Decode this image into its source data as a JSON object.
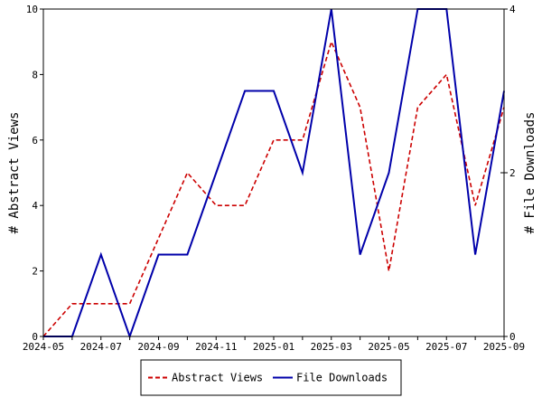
{
  "chart_data": {
    "type": "line",
    "x": [
      "2024-05",
      "2024-06",
      "2024-07",
      "2024-08",
      "2024-09",
      "2024-10",
      "2024-11",
      "2024-12",
      "2025-01",
      "2025-02",
      "2025-03",
      "2025-04",
      "2025-05",
      "2025-06",
      "2025-07",
      "2025-08",
      "2025-09"
    ],
    "x_tick_labels": [
      "2024-05",
      "2024-07",
      "2024-09",
      "2024-11",
      "2025-01",
      "2025-03",
      "2025-05",
      "2025-07",
      "2025-09"
    ],
    "series": [
      {
        "name": "Abstract Views",
        "axis": "left",
        "color": "#cc0000",
        "style": "dashed",
        "values": [
          0,
          1,
          1,
          1,
          3,
          5,
          4,
          4,
          6,
          6,
          9,
          7,
          2,
          7,
          8,
          4,
          7
        ]
      },
      {
        "name": "File Downloads",
        "axis": "right",
        "color": "#0000aa",
        "style": "solid",
        "values": [
          0,
          0,
          1,
          0,
          1,
          1,
          2,
          3,
          3,
          2,
          4,
          1,
          2,
          4,
          4,
          1,
          3
        ]
      }
    ],
    "ylabel_left": "# Abstract Views",
    "ylabel_right": "# File Downloads",
    "ylim_left": [
      0,
      10
    ],
    "ylim_right": [
      0,
      4
    ],
    "yticks_left": [
      "0",
      "2",
      "4",
      "6",
      "8",
      "10"
    ],
    "yticks_right": [
      "0",
      "2",
      "4"
    ],
    "grid": false,
    "legend_position": "bottom-center"
  }
}
